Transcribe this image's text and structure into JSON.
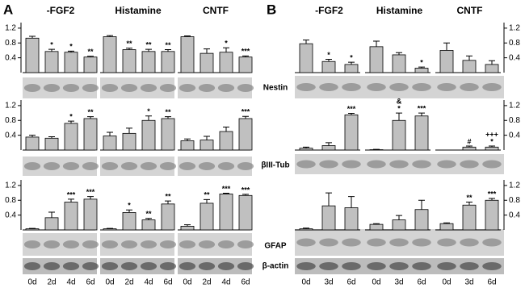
{
  "panels": [
    {
      "label": "A",
      "groups": [
        "-FGF2",
        "Histamine",
        "CNTF"
      ],
      "categories": [
        "0d",
        "2d",
        "4d",
        "6d"
      ]
    },
    {
      "label": "B",
      "groups": [
        "-FGF2",
        "Histamine",
        "CNTF"
      ],
      "categories": [
        "0d",
        "3d",
        "6d"
      ]
    }
  ],
  "blot_labels": [
    "Nestin",
    "βIII-Tub",
    "GFAP",
    "β-actin"
  ],
  "chart_data": [
    {
      "type": "bar",
      "color": "#c0c0c0",
      "ylim": [
        0,
        1.35
      ],
      "yticks": [
        0.4,
        0.8,
        1.2
      ],
      "values": [
        0.93,
        0.57,
        0.55,
        0.42,
        0.97,
        0.62,
        0.57,
        0.57,
        0.97,
        0.52,
        0.55,
        0.42
      ],
      "errors": [
        0.05,
        0.06,
        0.03,
        0.02,
        0.03,
        0.04,
        0.06,
        0.05,
        0.02,
        0.12,
        0.12,
        0.03
      ],
      "annotations": [
        null,
        [
          "*"
        ],
        [
          "*"
        ],
        [
          "**"
        ],
        null,
        [
          "**"
        ],
        [
          "**"
        ],
        [
          "**"
        ],
        null,
        null,
        [
          "*"
        ],
        [
          "***"
        ]
      ]
    },
    {
      "type": "bar",
      "color": "#c0c0c0",
      "ylim": [
        0,
        1.35
      ],
      "yticks": [
        0.4,
        0.8,
        1.2
      ],
      "values": [
        0.35,
        0.32,
        0.72,
        0.85,
        0.38,
        0.45,
        0.8,
        0.85,
        0.25,
        0.27,
        0.5,
        0.85
      ],
      "errors": [
        0.05,
        0.04,
        0.06,
        0.05,
        0.1,
        0.14,
        0.12,
        0.05,
        0.05,
        0.1,
        0.12,
        0.06
      ],
      "annotations": [
        null,
        null,
        [
          "*"
        ],
        [
          "**"
        ],
        null,
        null,
        [
          "*"
        ],
        [
          "**"
        ],
        null,
        null,
        null,
        [
          "***"
        ]
      ]
    },
    {
      "type": "bar",
      "color": "#c0c0c0",
      "ylim": [
        0,
        1.35
      ],
      "yticks": [
        0.4,
        0.8,
        1.2
      ],
      "values": [
        0.03,
        0.33,
        0.75,
        0.83,
        0.03,
        0.47,
        0.27,
        0.7,
        0.1,
        0.72,
        0.97,
        0.93
      ],
      "errors": [
        0.01,
        0.15,
        0.08,
        0.07,
        0.01,
        0.07,
        0.04,
        0.08,
        0.04,
        0.1,
        0.02,
        0.03
      ],
      "annotations": [
        null,
        null,
        [
          "***"
        ],
        [
          "***"
        ],
        null,
        [
          "*"
        ],
        [
          "**"
        ],
        [
          "**"
        ],
        null,
        [
          "**"
        ],
        [
          "***"
        ],
        [
          "***"
        ]
      ]
    },
    {
      "type": "bar",
      "color": "#c0c0c0",
      "ylim": [
        0,
        1.35
      ],
      "yticks": [
        0.4,
        0.8,
        1.2
      ],
      "values": [
        0.78,
        0.3,
        0.22,
        0.7,
        0.48,
        0.12,
        0.6,
        0.33,
        0.22
      ],
      "errors": [
        0.1,
        0.06,
        0.06,
        0.15,
        0.06,
        0.03,
        0.2,
        0.12,
        0.1
      ],
      "annotations": [
        null,
        [
          "*"
        ],
        [
          "*"
        ],
        null,
        null,
        [
          "*"
        ],
        null,
        null,
        null
      ]
    },
    {
      "type": "bar",
      "color": "#c0c0c0",
      "ylim": [
        0,
        1.35
      ],
      "yticks": [
        0.4,
        0.8,
        1.2
      ],
      "values": [
        0.05,
        0.12,
        0.95,
        0.01,
        0.8,
        0.92,
        0.0,
        0.08,
        0.08
      ],
      "errors": [
        0.03,
        0.08,
        0.04,
        0.01,
        0.2,
        0.08,
        0.0,
        0.03,
        0.03
      ],
      "annotations": [
        null,
        null,
        [
          "***"
        ],
        null,
        [
          "&",
          "*"
        ],
        [
          "***"
        ],
        null,
        [
          "#"
        ],
        [
          "+++",
          "*"
        ]
      ]
    },
    {
      "type": "bar",
      "color": "#c0c0c0",
      "ylim": [
        0,
        1.35
      ],
      "yticks": [
        0.4,
        0.8,
        1.2
      ],
      "values": [
        0.03,
        0.65,
        0.6,
        0.15,
        0.27,
        0.55,
        0.17,
        0.67,
        0.8
      ],
      "errors": [
        0.02,
        0.35,
        0.3,
        0.02,
        0.12,
        0.25,
        0.02,
        0.08,
        0.05
      ],
      "annotations": [
        null,
        null,
        null,
        null,
        null,
        null,
        null,
        [
          "**"
        ],
        [
          "***"
        ]
      ]
    }
  ]
}
